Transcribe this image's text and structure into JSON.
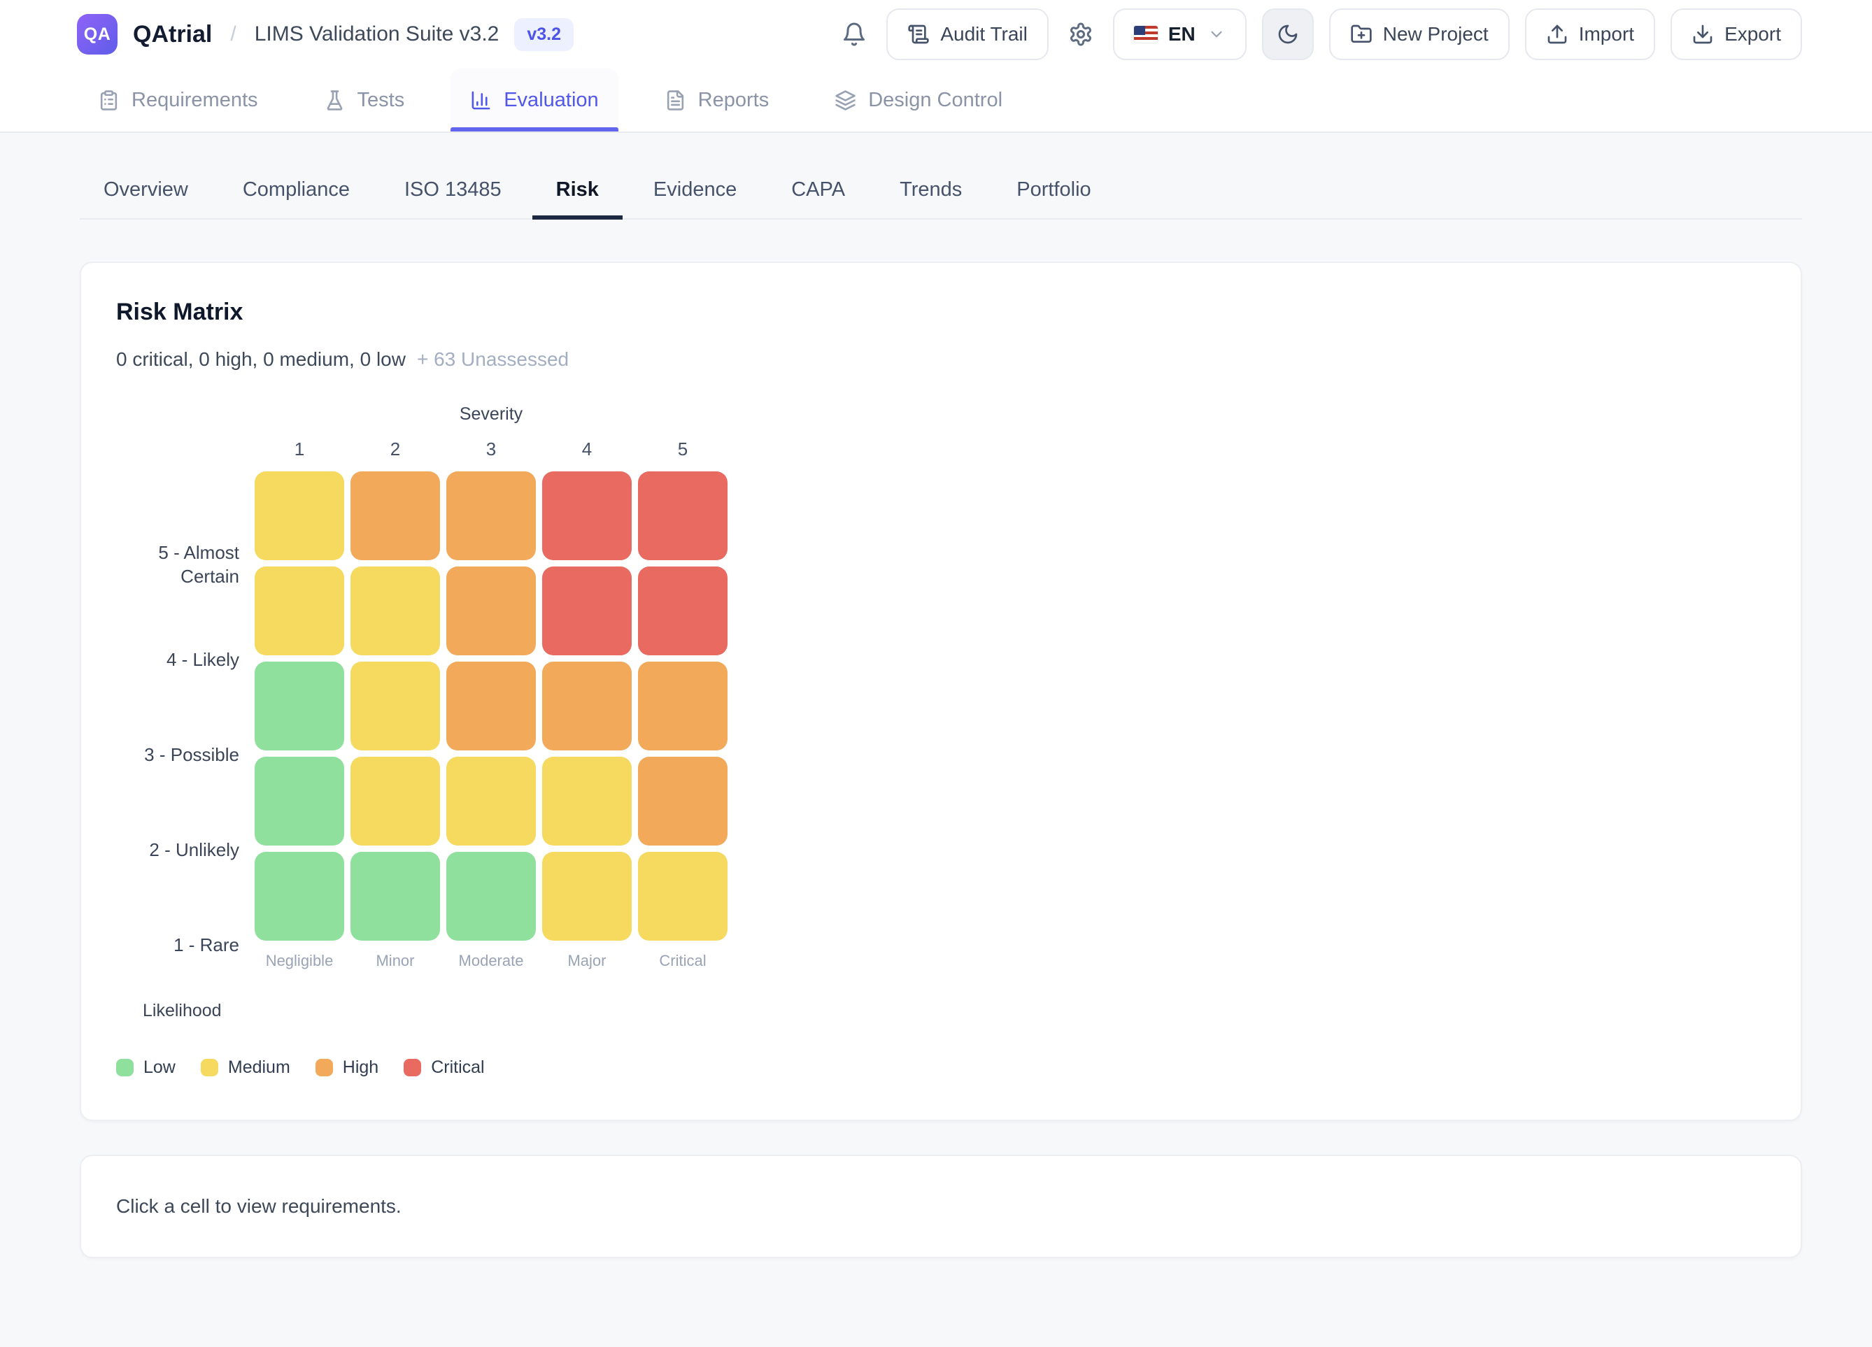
{
  "header": {
    "logo_text": "QA",
    "brand": "QAtrial",
    "breadcrumb_separator": "/",
    "project_title": "LIMS Validation Suite v3.2",
    "version_badge": "v3.2",
    "actions": [
      {
        "name": "notifications",
        "type": "icon",
        "icon": "bell-icon"
      },
      {
        "name": "audit-trail",
        "type": "button",
        "icon": "scroll-icon",
        "label": "Audit Trail"
      },
      {
        "name": "settings",
        "type": "icon",
        "icon": "gear-icon"
      },
      {
        "name": "language",
        "type": "language",
        "icon": "us-flag-icon",
        "label": "EN",
        "chevron": "chevron-down-icon"
      },
      {
        "name": "theme-toggle",
        "type": "button",
        "icon": "moon-icon",
        "label": "",
        "square": true,
        "toggled": true
      },
      {
        "name": "new-project",
        "type": "button",
        "icon": "folder-plus-icon",
        "label": "New Project"
      },
      {
        "name": "import",
        "type": "button",
        "icon": "upload-icon",
        "label": "Import"
      },
      {
        "name": "export",
        "type": "button",
        "icon": "download-icon",
        "label": "Export"
      }
    ],
    "nav_tabs": [
      {
        "label": "Requirements",
        "icon": "clipboard-icon",
        "active": false
      },
      {
        "label": "Tests",
        "icon": "flask-icon",
        "active": false
      },
      {
        "label": "Evaluation",
        "icon": "bar-chart-icon",
        "active": true
      },
      {
        "label": "Reports",
        "icon": "file-text-icon",
        "active": false
      },
      {
        "label": "Design Control",
        "icon": "layers-icon",
        "active": false
      }
    ]
  },
  "sub_tabs": [
    {
      "label": "Overview",
      "active": false
    },
    {
      "label": "Compliance",
      "active": false
    },
    {
      "label": "ISO 13485",
      "active": false
    },
    {
      "label": "Risk",
      "active": true
    },
    {
      "label": "Evidence",
      "active": false
    },
    {
      "label": "CAPA",
      "active": false
    },
    {
      "label": "Trends",
      "active": false
    },
    {
      "label": "Portfolio",
      "active": false
    }
  ],
  "risk_matrix": {
    "title": "Risk Matrix",
    "summary_counts": "0 critical, 0 high, 0 medium, 0 low",
    "unassessed_label": "+ 63 Unassessed",
    "x_axis_label": "Severity",
    "y_axis_label": "Likelihood",
    "column_numbers": [
      "1",
      "2",
      "3",
      "4",
      "5"
    ],
    "column_names": [
      "Negligible",
      "Minor",
      "Moderate",
      "Major",
      "Critical"
    ],
    "row_labels": [
      "5 - Almost Certain",
      "4 - Likely",
      "3 - Possible",
      "2 - Unlikely",
      "1 - Rare"
    ],
    "cells": [
      [
        "medium",
        "high",
        "high",
        "critical",
        "critical"
      ],
      [
        "medium",
        "medium",
        "high",
        "critical",
        "critical"
      ],
      [
        "low",
        "medium",
        "high",
        "high",
        "high"
      ],
      [
        "low",
        "medium",
        "medium",
        "medium",
        "high"
      ],
      [
        "low",
        "low",
        "low",
        "medium",
        "medium"
      ]
    ],
    "level_colors": {
      "low": "#8FE09D",
      "medium": "#F6D95F",
      "high": "#F2A95A",
      "critical": "#E96A60"
    },
    "legend": [
      {
        "label": "Low",
        "level": "low"
      },
      {
        "label": "Medium",
        "level": "medium"
      },
      {
        "label": "High",
        "level": "high"
      },
      {
        "label": "Critical",
        "level": "critical"
      }
    ]
  },
  "detail_panel": {
    "placeholder": "Click a cell to view requirements."
  },
  "theme": {
    "accent_indigo": "#6165ee",
    "badge_bg": "#edf0fe",
    "page_bg": "#f7f8fa",
    "border": "#e9ebf0",
    "active_subtab_underline": "#1d2940"
  }
}
